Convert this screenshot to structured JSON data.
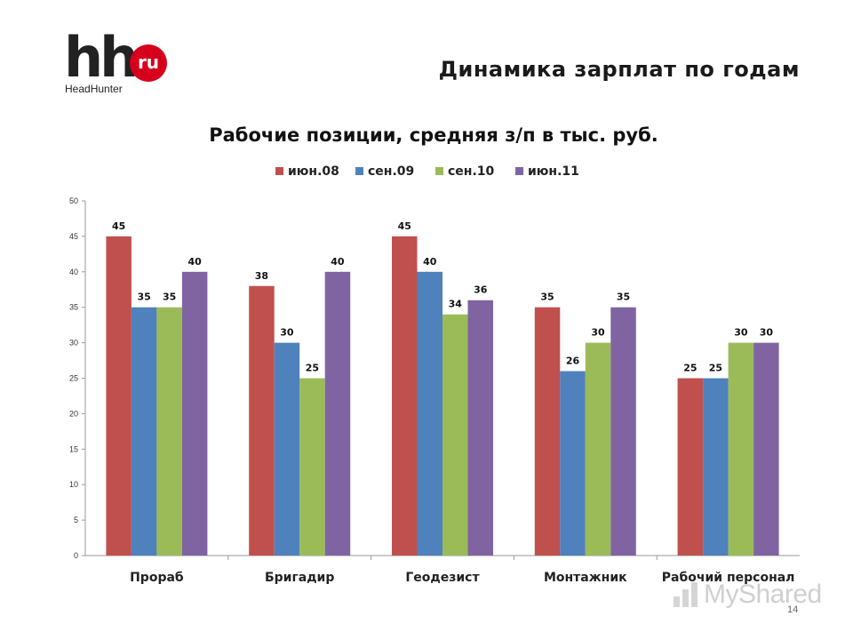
{
  "logo": {
    "brand": "hh",
    "badge": "ru",
    "sub": "HeadHunter"
  },
  "page_title": "Динамика зарплат по годам",
  "page_number": "14",
  "watermark": "MyShared",
  "chart_data": {
    "type": "bar",
    "title": "Рабочие позиции, средняя з/п в тыс. руб.",
    "xlabel": "",
    "ylabel": "",
    "categories": [
      "Прораб",
      "Бригадир",
      "Геодезист",
      "Монтажник",
      "Рабочий персонал"
    ],
    "series": [
      {
        "name": "июн.08",
        "color": "#c0504d",
        "values": [
          45,
          38,
          45,
          35,
          25
        ]
      },
      {
        "name": "сен.09",
        "color": "#4f81bd",
        "values": [
          35,
          30,
          40,
          26,
          25
        ]
      },
      {
        "name": "сен.10",
        "color": "#9bbb59",
        "values": [
          35,
          25,
          34,
          30,
          30
        ]
      },
      {
        "name": "июн.11",
        "color": "#8064a2",
        "values": [
          40,
          40,
          36,
          35,
          30
        ]
      }
    ],
    "ylim": [
      0,
      50
    ],
    "yticks": [
      0,
      5,
      10,
      15,
      20,
      25,
      30,
      35,
      40,
      45,
      50
    ],
    "grid": false,
    "legend": "top",
    "data_labels": true
  }
}
